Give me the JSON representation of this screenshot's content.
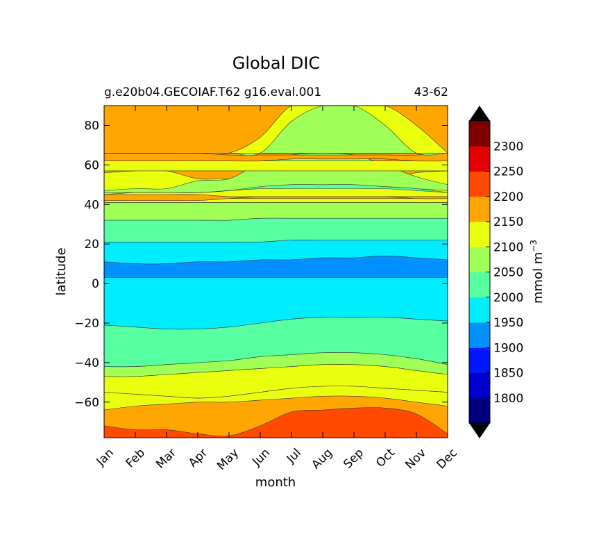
{
  "chart_data": {
    "type": "contourf",
    "title": "Global DIC",
    "subtitle_left": "g.e20b04.GECOIAF.T62 g16.eval.001",
    "subtitle_right": "43-62",
    "xlabel": "month",
    "ylabel": "latitude",
    "x_tick_labels": [
      "Jan",
      "Feb",
      "Mar",
      "Apr",
      "May",
      "Jun",
      "Jul",
      "Aug",
      "Sep",
      "Oct",
      "Nov",
      "Dec"
    ],
    "x_range": [
      1,
      12
    ],
    "y_ticks": [
      80,
      60,
      40,
      20,
      0,
      -20,
      -40,
      -60
    ],
    "y_tick_labels": [
      "80",
      "60",
      "40",
      "20",
      "0",
      "−20",
      "−40",
      "−60"
    ],
    "ylim": [
      -78,
      90
    ],
    "colorbar": {
      "label": "mmol m",
      "label_exponent": "−3",
      "levels": [
        1750,
        1800,
        1850,
        1900,
        1950,
        2000,
        2050,
        2100,
        2150,
        2200,
        2250,
        2300,
        2350
      ],
      "tick_values": [
        1800,
        1850,
        1900,
        1950,
        2000,
        2050,
        2100,
        2150,
        2200,
        2250,
        2300
      ],
      "tick_labels": [
        "1800",
        "1850",
        "1900",
        "1950",
        "2000",
        "2050",
        "2100",
        "2150",
        "2200",
        "2250",
        "2300"
      ],
      "colors": [
        "#00007f",
        "#0000cd",
        "#0018ff",
        "#0090ff",
        "#00ecff",
        "#56ff9f",
        "#a0ff56",
        "#eaff0d",
        "#ffa600",
        "#ff4a00",
        "#e30000",
        "#7f0000"
      ],
      "extend": "both",
      "extend_low_color": "#000000",
      "extend_high_color": "#000000"
    },
    "bands": [
      {
        "value_class": 2175,
        "color": "#ffa600",
        "lat": [
          [
            -78,
            -78,
            -78,
            -78,
            -78,
            -78,
            -78,
            -78,
            -78,
            -78,
            -78,
            -78
          ],
          [
            90,
            90,
            90,
            90,
            90,
            90,
            90,
            90,
            90,
            90,
            90,
            90
          ]
        ]
      },
      {
        "value_class": 2225,
        "color": "#ff4a00",
        "lat": [
          [
            -78,
            -78,
            -78,
            -78,
            -78,
            -78,
            -78,
            -78,
            -78,
            -78,
            -78,
            -78
          ],
          [
            -72,
            -74,
            -74,
            -76,
            -77,
            -72,
            -65,
            -64,
            -63,
            -63,
            -66,
            -76
          ]
        ]
      },
      {
        "value_class": 2125,
        "color": "#eaff0d",
        "lat": [
          [
            -55,
            -56,
            -57,
            -58,
            -57,
            -55,
            -53,
            -52,
            -52,
            -53,
            -54,
            -55
          ],
          [
            -47,
            -47,
            -46,
            -45,
            -44,
            -43,
            -42,
            -41,
            -41,
            -42,
            -44,
            -46
          ]
        ]
      },
      {
        "value_class": 2125,
        "color": "#eaff0d",
        "lat": [
          [
            -64,
            -62,
            -61,
            -60,
            -60,
            -59,
            -58,
            -57,
            -57,
            -58,
            -60,
            -62
          ],
          [
            -55,
            -56,
            -57,
            -58,
            -57,
            -55,
            -53,
            -52,
            -52,
            -53,
            -54,
            -55
          ]
        ]
      },
      {
        "value_class": 2075,
        "color": "#a0ff56",
        "lat": [
          [
            -47,
            -47,
            -46,
            -45,
            -44,
            -43,
            -42,
            -41,
            -41,
            -42,
            -44,
            -46
          ],
          [
            -42,
            -42,
            -41,
            -40,
            -39,
            -37,
            -36,
            -35,
            -35,
            -36,
            -38,
            -41
          ]
        ]
      },
      {
        "value_class": 2025,
        "color": "#56ff9f",
        "lat": [
          [
            -42,
            -42,
            -41,
            -40,
            -39,
            -37,
            -36,
            -35,
            -35,
            -36,
            -38,
            -41
          ],
          [
            -21,
            -22,
            -23,
            -23,
            -22,
            -20,
            -18,
            -17,
            -17,
            -17,
            -18,
            -19
          ]
        ]
      },
      {
        "value_class": 1975,
        "color": "#00ecff",
        "lat": [
          [
            -21,
            -22,
            -23,
            -23,
            -22,
            -20,
            -18,
            -17,
            -17,
            -17,
            -18,
            -19
          ],
          [
            21,
            21,
            21,
            21,
            21,
            21,
            22,
            22,
            22,
            22,
            22,
            22
          ]
        ]
      },
      {
        "value_class": 1925,
        "color": "#0090ff",
        "lat": [
          [
            3,
            3,
            3,
            3,
            3,
            3,
            3,
            3,
            3,
            3,
            3,
            3
          ],
          [
            11,
            10,
            10,
            11,
            11,
            12,
            12,
            13,
            13,
            14,
            13,
            12
          ]
        ]
      },
      {
        "value_class": 2025,
        "color": "#56ff9f",
        "lat": [
          [
            21,
            21,
            21,
            21,
            21,
            21,
            22,
            22,
            22,
            22,
            22,
            22
          ],
          [
            32,
            32,
            32,
            32,
            32,
            33,
            33,
            33,
            33,
            33,
            33,
            33
          ]
        ]
      },
      {
        "value_class": 2075,
        "color": "#a0ff56",
        "lat": [
          [
            32,
            32,
            32,
            32,
            32,
            33,
            33,
            33,
            33,
            33,
            33,
            33
          ],
          [
            41,
            41,
            41,
            41,
            41,
            41,
            41,
            41,
            41,
            41,
            41,
            41
          ]
        ]
      },
      {
        "value_class": 2125,
        "color": "#eaff0d",
        "lat": [
          [
            41,
            41,
            41,
            41,
            41,
            41,
            41,
            41,
            41,
            41,
            41,
            41
          ],
          [
            43,
            43,
            43,
            43,
            43,
            43,
            43,
            43,
            43,
            43,
            43,
            43
          ]
        ]
      },
      {
        "value_class": 2175,
        "color": "#ffa600",
        "lat": [
          [
            42,
            42,
            42,
            42,
            43,
            44,
            44,
            44,
            44,
            44,
            43,
            43
          ],
          [
            45,
            45,
            45,
            45,
            44,
            44,
            44,
            44,
            44,
            44,
            44,
            44
          ]
        ]
      },
      {
        "value_class": 2125,
        "color": "#eaff0d",
        "lat": [
          [
            45,
            45,
            45,
            45,
            44,
            44,
            44,
            44,
            44,
            44,
            44,
            44
          ],
          [
            56,
            57,
            57,
            53,
            53,
            52,
            52,
            52,
            52,
            53,
            56,
            57
          ]
        ]
      },
      {
        "value_class": 2075,
        "color": "#a0ff56",
        "lat": [
          [
            45,
            46,
            46,
            46,
            47,
            48,
            49,
            49,
            49,
            49,
            48,
            47
          ],
          [
            47,
            48,
            48,
            52,
            53,
            61,
            65,
            66,
            65,
            60,
            54,
            50
          ]
        ]
      },
      {
        "value_class": 2025,
        "color": "#56ff9f",
        "lat": [
          [
            46,
            46,
            46,
            46,
            47,
            48,
            48,
            48,
            48,
            48,
            47,
            46
          ],
          [
            46,
            46,
            46,
            46,
            47,
            49,
            50,
            50,
            50,
            49,
            48,
            46
          ]
        ]
      },
      {
        "value_class": 2125,
        "color": "#eaff0d",
        "lat": [
          [
            57,
            57,
            57,
            57,
            57,
            57,
            57,
            57,
            57,
            57,
            57,
            57
          ],
          [
            62,
            62,
            62,
            62,
            62,
            62,
            62,
            62,
            62,
            62,
            62,
            62
          ]
        ]
      },
      {
        "value_class": 2175,
        "color": "#ffa600",
        "lat": [
          [
            62,
            62,
            62,
            62,
            62,
            62,
            63,
            63,
            63,
            63,
            62,
            62
          ],
          [
            66,
            66,
            66,
            66,
            65,
            65,
            65,
            65,
            65,
            65,
            65,
            66
          ]
        ]
      },
      {
        "value_class": 2225,
        "color": "#ff4a00",
        "lat": [
          [
            66,
            66,
            66,
            66,
            66,
            66,
            66,
            66,
            66,
            66,
            66,
            66
          ],
          [
            68,
            69,
            69,
            69,
            68,
            66,
            66,
            66,
            66,
            66,
            66,
            66
          ]
        ]
      },
      {
        "value_class": 2175,
        "color": "#ffa600",
        "lat": [
          [
            66,
            66,
            66,
            66,
            66,
            66,
            66,
            66,
            66,
            66,
            66,
            66
          ],
          [
            90,
            90,
            90,
            90,
            90,
            90,
            90,
            90,
            90,
            90,
            90,
            90
          ]
        ]
      },
      {
        "value_class": 2125,
        "color": "#eaff0d",
        "lat": [
          [
            66,
            66,
            66,
            66,
            66,
            66,
            66,
            66,
            66,
            66,
            66,
            66
          ],
          [
            66,
            66,
            66,
            66,
            66,
            74,
            90,
            90,
            90,
            90,
            80,
            66
          ]
        ]
      },
      {
        "value_class": 2075,
        "color": "#a0ff56",
        "lat": [
          [
            66,
            66,
            66,
            66,
            66,
            66,
            66,
            66,
            66,
            66,
            66,
            66
          ],
          [
            66,
            66,
            66,
            66,
            66,
            66,
            82,
            90,
            90,
            80,
            66,
            66
          ]
        ]
      }
    ]
  }
}
